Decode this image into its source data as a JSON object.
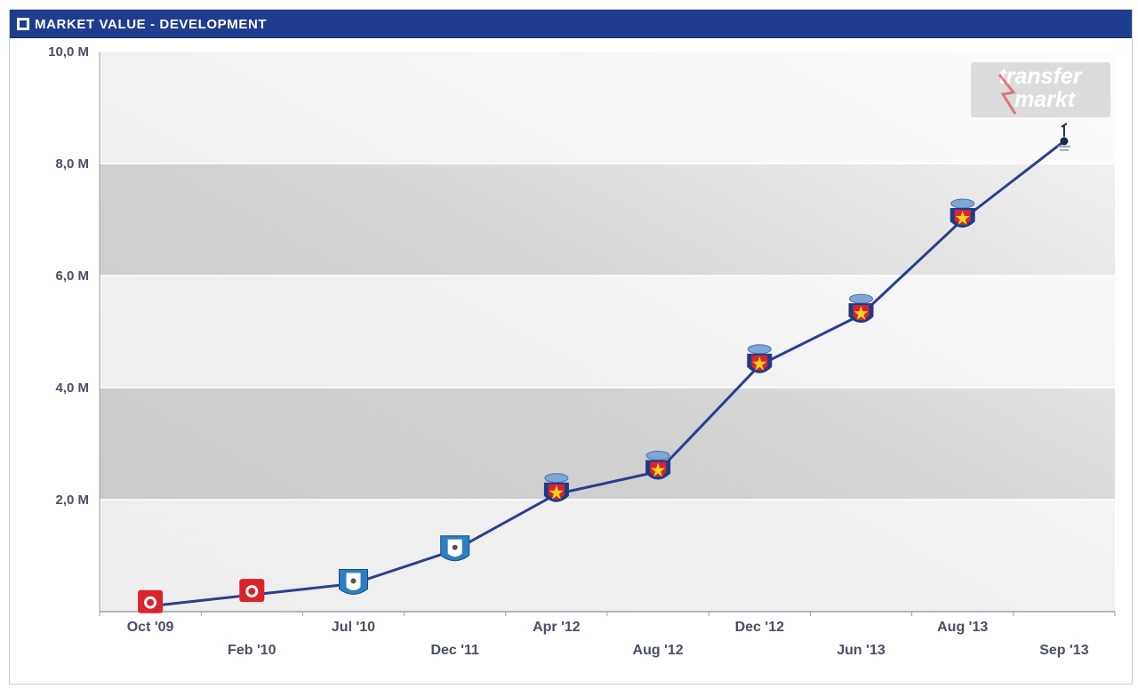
{
  "header": {
    "title": "MARKET VALUE - DEVELOPMENT"
  },
  "watermark": {
    "line1": "transfer",
    "line2": "markt"
  },
  "colors": {
    "header_bg": "#1f3d8f",
    "line": "#2b3f8c",
    "band_dark": "#c9c9c9",
    "band_light": "#eeeeee",
    "club_red": "#d9242d",
    "club_blue": "#2d7fc4",
    "club_navy": "#1f3a8a"
  },
  "chart_data": {
    "type": "line",
    "title": "MARKET VALUE - DEVELOPMENT",
    "xlabel": "",
    "ylabel": "",
    "ylim": [
      0,
      10
    ],
    "yticks": [
      {
        "value": 2,
        "label": "2,0 M"
      },
      {
        "value": 4,
        "label": "4,0 M"
      },
      {
        "value": 6,
        "label": "6,0 M"
      },
      {
        "value": 8,
        "label": "8,0 M"
      },
      {
        "value": 10,
        "label": "10,0 M"
      }
    ],
    "grid": true,
    "categories": [
      "Oct '09",
      "Feb '10",
      "Jul '10",
      "Dec '11",
      "Apr '12",
      "Aug '12",
      "Dec '12",
      "Jun '13",
      "Aug '13",
      "Sep '13"
    ],
    "values": [
      0.1,
      0.3,
      0.5,
      1.1,
      2.1,
      2.5,
      4.4,
      5.3,
      7.0,
      8.4
    ],
    "markers": [
      "club-red-badge",
      "club-red-badge",
      "club-blue-badge",
      "club-blue-badge",
      "club-navy-badge",
      "club-navy-badge",
      "club-navy-badge",
      "club-navy-badge",
      "club-navy-badge",
      "club-cockerel-badge"
    ]
  }
}
